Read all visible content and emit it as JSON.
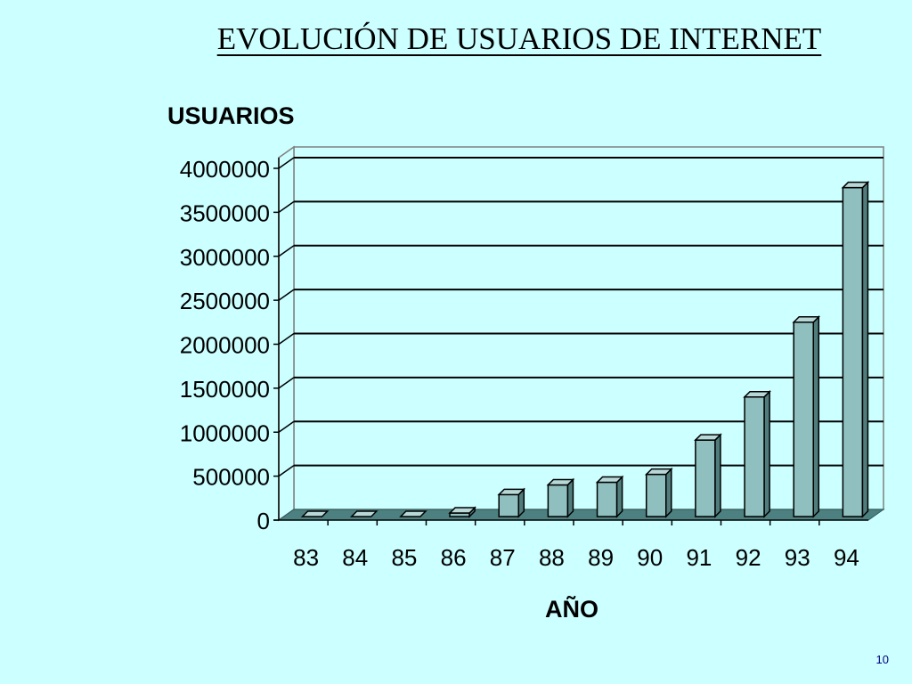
{
  "page": {
    "number": "10"
  },
  "chart_data": {
    "type": "bar",
    "title": "EVOLUCIÓN DE USUARIOS DE INTERNET",
    "ylabel": "USUARIOS",
    "xlabel": "AÑO",
    "categories": [
      "83",
      "84",
      "85",
      "86",
      "87",
      "88",
      "89",
      "90",
      "91",
      "92",
      "93",
      "94"
    ],
    "values": [
      0,
      0,
      0,
      40000,
      250000,
      360000,
      390000,
      480000,
      870000,
      1360000,
      2210000,
      3740000
    ],
    "yticks": [
      "0",
      "500000",
      "1000000",
      "1500000",
      "2000000",
      "2500000",
      "3000000",
      "3500000",
      "4000000"
    ],
    "ylim": [
      0,
      4000000
    ],
    "grid": true,
    "legend": "none",
    "colors": {
      "bar_front": "#8fbfbf",
      "bar_top": "#b8d8d8",
      "bar_side": "#507c7c",
      "floor": "#4d8080",
      "plot_background": "#ccffff",
      "axis_text": "#000000"
    }
  }
}
